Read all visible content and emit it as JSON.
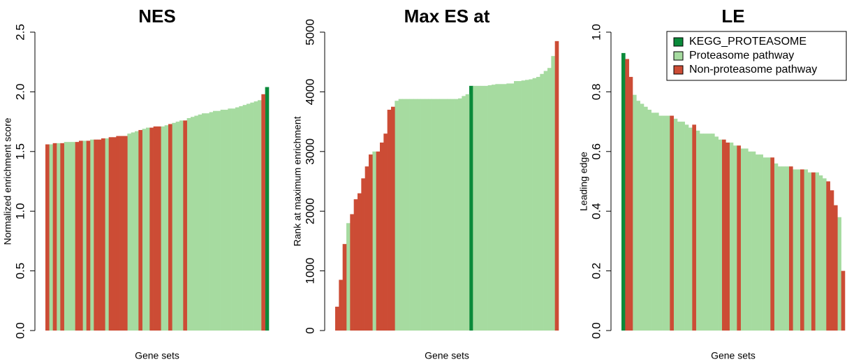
{
  "chart_data": [
    {
      "type": "bar",
      "title": "NES",
      "xlabel": "Gene sets",
      "ylabel": "Normalized enrichment score",
      "ylim": [
        0,
        2.5
      ],
      "yticks": [
        {
          "value": 0,
          "label": "0.0"
        },
        0.5,
        {
          "value": 1,
          "label": "1.0"
        },
        1.5,
        {
          "value": 2,
          "label": "2.0"
        },
        2.5
      ],
      "series": [
        {
          "color": "#0a8a3a",
          "values": [
            null,
            null,
            null,
            null,
            null,
            null,
            null,
            null,
            null,
            null,
            null,
            null,
            null,
            null,
            null,
            null,
            null,
            null,
            null,
            null,
            null,
            null,
            null,
            null,
            null,
            null,
            null,
            null,
            null,
            null,
            null,
            null,
            null,
            null,
            null,
            null,
            null,
            null,
            null,
            null,
            null,
            null,
            null,
            null,
            null,
            null,
            null,
            null,
            null,
            null,
            null,
            null,
            null,
            null,
            null,
            null,
            null,
            null,
            null,
            2.04
          ]
        },
        {
          "color": "#a6dba0",
          "values": [
            null,
            1.56,
            null,
            1.57,
            null,
            1.58,
            1.58,
            1.58,
            null,
            null,
            1.59,
            null,
            1.6,
            null,
            null,
            null,
            1.61,
            null,
            null,
            null,
            null,
            null,
            1.65,
            1.66,
            1.67,
            null,
            1.69,
            1.7,
            null,
            null,
            null,
            1.71,
            1.72,
            null,
            1.74,
            1.75,
            1.76,
            null,
            1.78,
            1.79,
            1.8,
            1.81,
            1.82,
            1.82,
            1.83,
            1.84,
            1.84,
            1.85,
            1.85,
            1.86,
            1.86,
            1.87,
            1.88,
            1.89,
            1.9,
            1.91,
            1.92,
            1.93,
            null,
            null
          ]
        },
        {
          "color": "#cc4c35",
          "values": [
            1.56,
            null,
            1.57,
            null,
            1.57,
            null,
            null,
            null,
            1.58,
            1.59,
            null,
            1.59,
            null,
            1.6,
            1.6,
            1.61,
            null,
            1.62,
            1.62,
            1.63,
            1.63,
            1.63,
            null,
            null,
            null,
            1.68,
            null,
            null,
            1.7,
            1.71,
            1.71,
            null,
            null,
            1.73,
            null,
            null,
            null,
            1.76,
            null,
            null,
            null,
            null,
            null,
            null,
            null,
            null,
            null,
            null,
            null,
            null,
            null,
            null,
            null,
            null,
            null,
            null,
            null,
            null,
            1.98,
            null
          ]
        }
      ]
    },
    {
      "type": "bar",
      "title": "Max ES at",
      "xlabel": "Gene sets",
      "ylabel": "Rank at maximum enrichment",
      "ylim": [
        0,
        5000
      ],
      "yticks": [
        0,
        1000,
        2000,
        3000,
        4000,
        5000
      ],
      "series": [
        {
          "color": "#0a8a3a",
          "values": [
            null,
            null,
            null,
            null,
            null,
            null,
            null,
            null,
            null,
            null,
            null,
            null,
            null,
            null,
            null,
            null,
            null,
            null,
            null,
            null,
            null,
            null,
            null,
            null,
            null,
            null,
            null,
            null,
            null,
            null,
            null,
            null,
            null,
            null,
            null,
            null,
            4100,
            null,
            null,
            null,
            null,
            null,
            null,
            null,
            null,
            null,
            null,
            null,
            null,
            null,
            null,
            null,
            null,
            null,
            null,
            null,
            null,
            null,
            null,
            null
          ]
        },
        {
          "color": "#a6dba0",
          "values": [
            null,
            null,
            null,
            1800,
            null,
            null,
            null,
            null,
            null,
            null,
            3000,
            null,
            null,
            null,
            null,
            null,
            3850,
            3880,
            3880,
            3880,
            3880,
            3880,
            3880,
            3880,
            3880,
            3880,
            3880,
            3880,
            3880,
            3880,
            3880,
            3880,
            3880,
            3890,
            3930,
            3960,
            null,
            4100,
            4100,
            4100,
            4100,
            4110,
            4120,
            4130,
            4130,
            4130,
            4140,
            4140,
            4180,
            4180,
            4190,
            4200,
            4210,
            4230,
            4250,
            4300,
            4350,
            4400,
            4600,
            null
          ]
        },
        {
          "color": "#cc4c35",
          "values": [
            400,
            850,
            1450,
            null,
            1950,
            2200,
            2300,
            2550,
            2750,
            2950,
            null,
            3000,
            3150,
            3300,
            3700,
            3750,
            null,
            null,
            null,
            null,
            null,
            null,
            null,
            null,
            null,
            null,
            null,
            null,
            null,
            null,
            null,
            null,
            null,
            null,
            null,
            null,
            null,
            null,
            null,
            null,
            null,
            null,
            null,
            null,
            null,
            null,
            null,
            null,
            null,
            null,
            null,
            null,
            null,
            null,
            null,
            null,
            null,
            null,
            null,
            4850
          ]
        }
      ]
    },
    {
      "type": "bar",
      "title": "LE",
      "xlabel": "Gene sets",
      "ylabel": "Leading edge",
      "legend": "top-right",
      "ylim": [
        0,
        1
      ],
      "yticks": [
        {
          "value": 0,
          "label": "0.0"
        },
        0.2,
        0.4,
        0.6,
        0.8,
        {
          "value": 1,
          "label": "1.0"
        }
      ],
      "series": [
        {
          "name": "KEGG_PROTEASOME",
          "color": "#0a8a3a",
          "values": [
            0.93,
            null,
            null,
            null,
            null,
            null,
            null,
            null,
            null,
            null,
            null,
            null,
            null,
            null,
            null,
            null,
            null,
            null,
            null,
            null,
            null,
            null,
            null,
            null,
            null,
            null,
            null,
            null,
            null,
            null,
            null,
            null,
            null,
            null,
            null,
            null,
            null,
            null,
            null,
            null,
            null,
            null,
            null,
            null,
            null,
            null,
            null,
            null,
            null,
            null,
            null,
            null,
            null,
            null,
            null,
            null,
            null,
            null,
            null,
            null
          ]
        },
        {
          "name": "Proteasome pathway",
          "color": "#a6dba0",
          "values": [
            null,
            null,
            null,
            0.79,
            0.77,
            0.76,
            0.75,
            0.74,
            0.73,
            0.73,
            0.72,
            0.72,
            0.72,
            null,
            0.71,
            0.7,
            0.7,
            0.69,
            0.68,
            null,
            0.67,
            0.66,
            0.66,
            0.66,
            0.66,
            0.65,
            0.64,
            null,
            null,
            0.63,
            0.62,
            null,
            0.61,
            0.61,
            0.6,
            0.6,
            0.59,
            0.59,
            0.58,
            0.58,
            null,
            0.56,
            0.55,
            0.55,
            0.55,
            null,
            0.54,
            0.54,
            null,
            0.54,
            0.53,
            null,
            0.53,
            0.52,
            0.51,
            null,
            null,
            null,
            0.38,
            null
          ]
        },
        {
          "name": "Non-proteasome pathway",
          "color": "#cc4c35",
          "values": [
            null,
            0.91,
            0.85,
            null,
            null,
            null,
            null,
            null,
            null,
            null,
            null,
            null,
            null,
            0.72,
            null,
            null,
            null,
            null,
            null,
            0.69,
            null,
            null,
            null,
            null,
            null,
            null,
            null,
            0.64,
            0.63,
            null,
            null,
            0.62,
            null,
            null,
            null,
            null,
            null,
            null,
            null,
            null,
            0.58,
            null,
            null,
            null,
            null,
            0.55,
            null,
            null,
            0.54,
            null,
            null,
            0.53,
            null,
            null,
            null,
            0.5,
            0.47,
            0.42,
            null,
            0.2
          ]
        }
      ]
    }
  ]
}
